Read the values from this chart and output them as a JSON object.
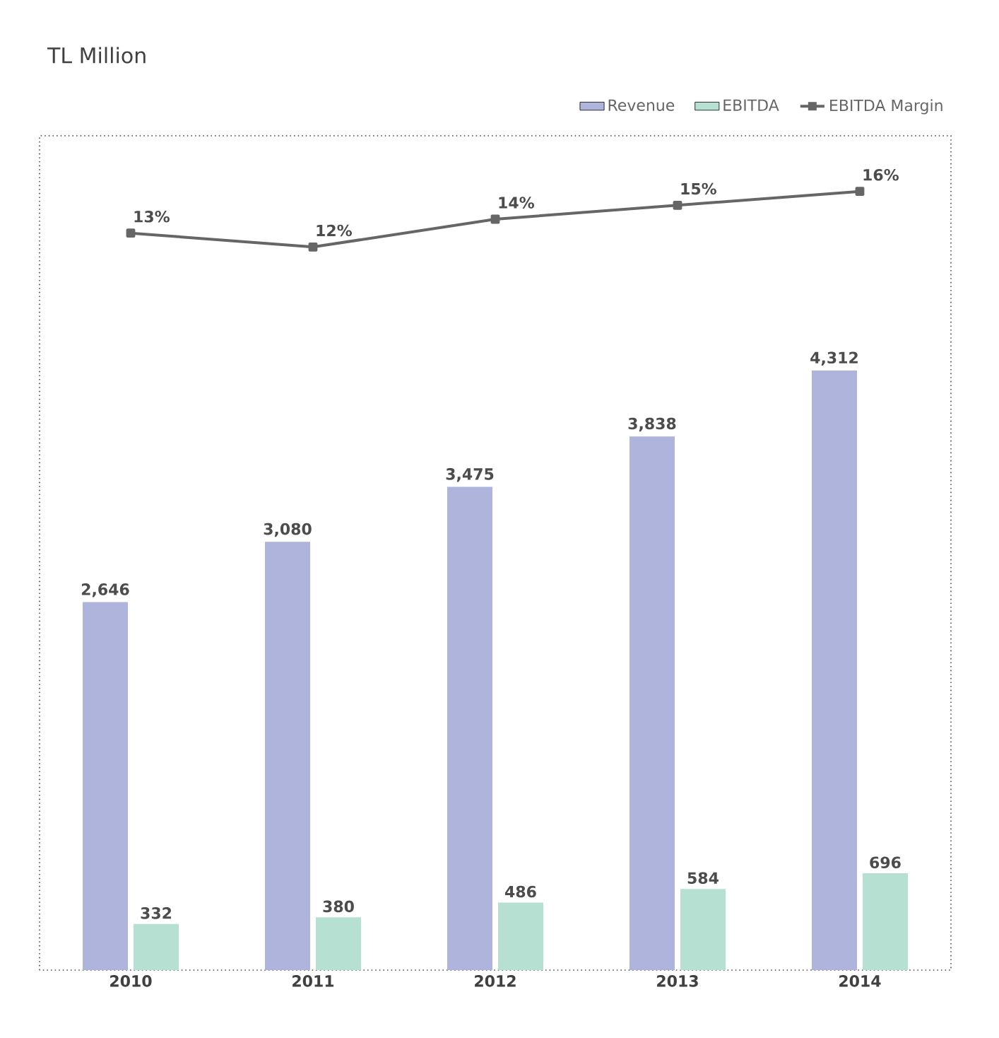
{
  "chart_data": {
    "type": "bar",
    "title": "TL Million",
    "categories": [
      "2010",
      "2011",
      "2012",
      "2013",
      "2014"
    ],
    "series": [
      {
        "name": "Revenue",
        "color": "#aeb4dc",
        "values": [
          2646,
          3080,
          3475,
          3838,
          4312
        ],
        "value_labels": [
          "2,646",
          "3,080",
          "3,475",
          "3,838",
          "4,312"
        ]
      },
      {
        "name": "EBITDA",
        "color": "#b5e0d2",
        "values": [
          332,
          380,
          486,
          584,
          696
        ],
        "value_labels": [
          "332",
          "380",
          "486",
          "584",
          "696"
        ]
      },
      {
        "name": "EBITDA Margin",
        "type": "line",
        "axis": "y2",
        "color": "#666666",
        "marker": "square",
        "values": [
          13,
          12,
          14,
          15,
          16
        ],
        "value_labels": [
          "13%",
          "12%",
          "14%",
          "15%",
          "16%"
        ]
      }
    ],
    "ylim": [
      0,
      6000
    ],
    "y2lim": [
      -40,
      20
    ],
    "tick_labels": "x",
    "legend": "top right",
    "grid": false
  }
}
